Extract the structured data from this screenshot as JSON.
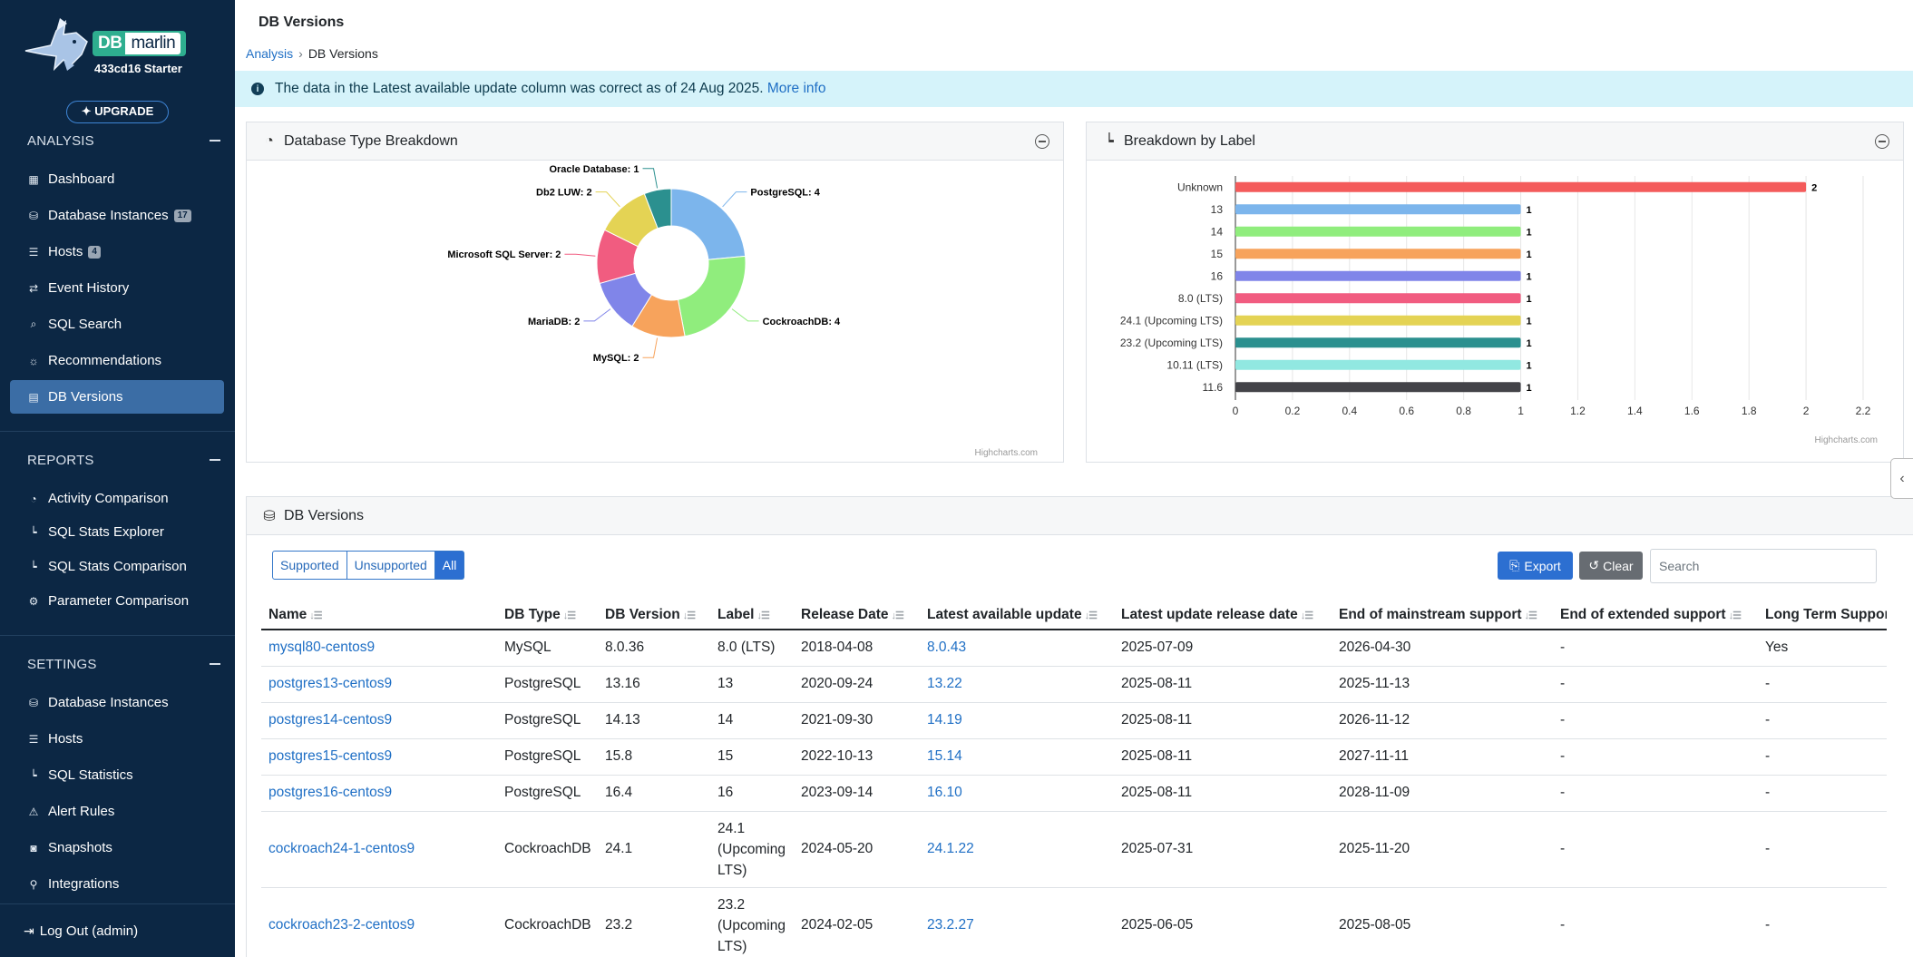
{
  "app": {
    "logo_db": "DB",
    "logo_marlin": "marlin",
    "logo_subtitle": "433cd16 Starter",
    "upgrade_label": "UPGRADE"
  },
  "sidebar": {
    "analysis": {
      "title": "ANALYSIS",
      "items": [
        {
          "label": "Dashboard",
          "icon": "grid-icon"
        },
        {
          "label": "Database Instances",
          "icon": "database-icon",
          "badge": "17"
        },
        {
          "label": "Hosts",
          "icon": "server-icon",
          "badge": "4"
        },
        {
          "label": "Event History",
          "icon": "arrows-icon"
        },
        {
          "label": "SQL Search",
          "icon": "search-icon"
        },
        {
          "label": "Recommendations",
          "icon": "lightbulb-icon"
        },
        {
          "label": "DB Versions",
          "icon": "file-icon",
          "active": true
        }
      ]
    },
    "reports": {
      "title": "REPORTS",
      "items": [
        {
          "label": "Activity Comparison",
          "icon": "gauge-icon"
        },
        {
          "label": "SQL Stats Explorer",
          "icon": "chart-icon"
        },
        {
          "label": "SQL Stats Comparison",
          "icon": "chart-icon"
        },
        {
          "label": "Parameter Comparison",
          "icon": "gear-icon"
        }
      ]
    },
    "settings": {
      "title": "SETTINGS",
      "items": [
        {
          "label": "Database Instances",
          "icon": "database-icon"
        },
        {
          "label": "Hosts",
          "icon": "server-icon"
        },
        {
          "label": "SQL Statistics",
          "icon": "chart-icon"
        },
        {
          "label": "Alert Rules",
          "icon": "warning-icon"
        },
        {
          "label": "Snapshots",
          "icon": "camera-icon"
        },
        {
          "label": "Integrations",
          "icon": "plug-icon"
        }
      ]
    },
    "logout_label": "Log Out (admin)"
  },
  "header": {
    "title": "DB Versions",
    "breadcrumb": [
      "Analysis",
      "DB Versions"
    ]
  },
  "banner": {
    "text": "The data in the Latest available update column was correct as of 24 Aug 2025.",
    "link": "More info"
  },
  "panels": {
    "type_breakdown_title": "Database Type Breakdown",
    "label_breakdown_title": "Breakdown by Label",
    "credit": "Highcharts.com"
  },
  "chart_data": [
    {
      "type": "pie",
      "title": "Database Type Breakdown",
      "donut": true,
      "slices": [
        {
          "name": "PostgreSQL",
          "value": 4,
          "color": "#7cb5ec"
        },
        {
          "name": "CockroachDB",
          "value": 4,
          "color": "#90ed7d"
        },
        {
          "name": "MySQL",
          "value": 2,
          "color": "#f7a35c"
        },
        {
          "name": "MariaDB",
          "value": 2,
          "color": "#8085e9"
        },
        {
          "name": "Microsoft SQL Server",
          "value": 2,
          "color": "#f15c80"
        },
        {
          "name": "Db2 LUW",
          "value": 2,
          "color": "#e4d354"
        },
        {
          "name": "Oracle Database",
          "value": 1,
          "color": "#2b908f"
        }
      ]
    },
    {
      "type": "bar",
      "orientation": "horizontal",
      "title": "Breakdown by Label",
      "categories": [
        "Unknown",
        "13",
        "14",
        "15",
        "16",
        "8.0 (LTS)",
        "24.1 (Upcoming LTS)",
        "23.2 (Upcoming LTS)",
        "10.11 (LTS)",
        "11.6"
      ],
      "values": [
        2,
        1,
        1,
        1,
        1,
        1,
        1,
        1,
        1,
        1
      ],
      "colors": [
        "#f45b5b",
        "#7cb5ec",
        "#90ed7d",
        "#f7a35c",
        "#8085e9",
        "#f15c80",
        "#e4d354",
        "#2b908f",
        "#91e8e1",
        "#434348"
      ],
      "xlim": [
        0,
        2.2
      ],
      "ticks": [
        0,
        0.2,
        0.4,
        0.6,
        0.8,
        1,
        1.2,
        1.4,
        1.6,
        1.8,
        2,
        2.2
      ],
      "grid": true
    }
  ],
  "table_panel": {
    "title": "DB Versions",
    "filters": [
      "Supported",
      "Unsupported",
      "All"
    ],
    "active_filter": "All",
    "export_label": "Export",
    "clear_label": "Clear",
    "search_placeholder": "Search",
    "columns": [
      "Name",
      "DB Type",
      "DB Version",
      "Label",
      "Release Date",
      "Latest available update",
      "Latest update release date",
      "End of mainstream support",
      "End of extended support",
      "Long Term Support"
    ],
    "rows": [
      [
        "mysql80-centos9",
        "MySQL",
        "8.0.36",
        "8.0 (LTS)",
        "2018-04-08",
        "8.0.43",
        "2025-07-09",
        "2026-04-30",
        "-",
        "Yes"
      ],
      [
        "postgres13-centos9",
        "PostgreSQL",
        "13.16",
        "13",
        "2020-09-24",
        "13.22",
        "2025-08-11",
        "2025-11-13",
        "-",
        "-"
      ],
      [
        "postgres14-centos9",
        "PostgreSQL",
        "14.13",
        "14",
        "2021-09-30",
        "14.19",
        "2025-08-11",
        "2026-11-12",
        "-",
        "-"
      ],
      [
        "postgres15-centos9",
        "PostgreSQL",
        "15.8",
        "15",
        "2022-10-13",
        "15.14",
        "2025-08-11",
        "2027-11-11",
        "-",
        "-"
      ],
      [
        "postgres16-centos9",
        "PostgreSQL",
        "16.4",
        "16",
        "2023-09-14",
        "16.10",
        "2025-08-11",
        "2028-11-09",
        "-",
        "-"
      ],
      [
        "cockroach24-1-centos9",
        "CockroachDB",
        "24.1",
        "24.1 (Upcoming LTS)",
        "2024-05-20",
        "24.1.22",
        "2025-07-31",
        "2025-11-20",
        "-",
        "-"
      ],
      [
        "cockroach23-2-centos9",
        "CockroachDB",
        "23.2",
        "23.2 (Upcoming LTS)",
        "2024-02-05",
        "23.2.27",
        "2025-06-05",
        "2025-08-05",
        "-",
        "-"
      ]
    ]
  }
}
